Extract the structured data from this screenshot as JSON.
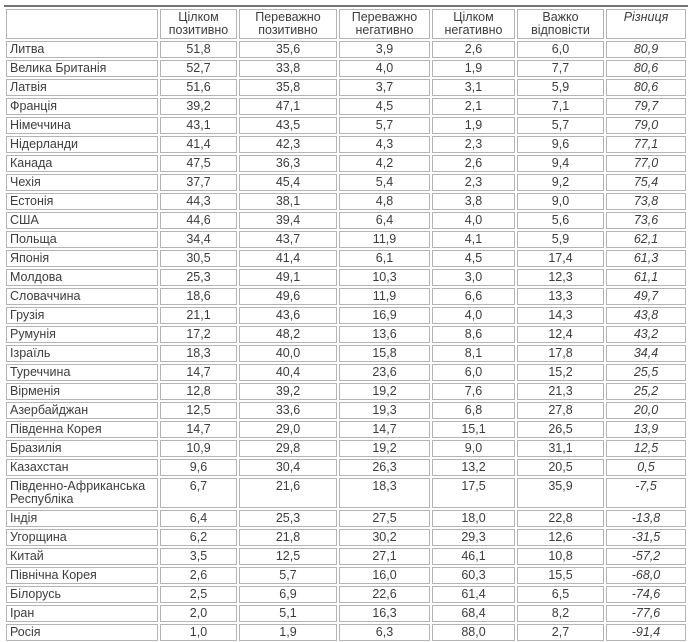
{
  "colors": {
    "background": "#ffffff",
    "text": "#3d3d3d",
    "cell_border": "#b4b4b4",
    "table_top_border": "#757575"
  },
  "chart_data": {
    "type": "table",
    "title": "",
    "columns": [
      "",
      "Цілком позитивно",
      "Переважно позитивно",
      "Переважно негативно",
      "Цілком негативно",
      "Важко відповісти",
      "Різниця"
    ],
    "rows": [
      [
        "Литва",
        "51,8",
        "35,6",
        "3,9",
        "2,6",
        "6,0",
        "80,9"
      ],
      [
        "Велика Британія",
        "52,7",
        "33,8",
        "4,0",
        "1,9",
        "7,7",
        "80,6"
      ],
      [
        "Латвія",
        "51,6",
        "35,8",
        "3,7",
        "3,1",
        "5,9",
        "80,6"
      ],
      [
        "Франція",
        "39,2",
        "47,1",
        "4,5",
        "2,1",
        "7,1",
        "79,7"
      ],
      [
        "Німеччина",
        "43,1",
        "43,5",
        "5,7",
        "1,9",
        "5,7",
        "79,0"
      ],
      [
        "Нідерланди",
        "41,4",
        "42,3",
        "4,3",
        "2,3",
        "9,6",
        "77,1"
      ],
      [
        "Канада",
        "47,5",
        "36,3",
        "4,2",
        "2,6",
        "9,4",
        "77,0"
      ],
      [
        "Чехія",
        "37,7",
        "45,4",
        "5,4",
        "2,3",
        "9,2",
        "75,4"
      ],
      [
        "Естонія",
        "44,3",
        "38,1",
        "4,8",
        "3,8",
        "9,0",
        "73,8"
      ],
      [
        "США",
        "44,6",
        "39,4",
        "6,4",
        "4,0",
        "5,6",
        "73,6"
      ],
      [
        "Польща",
        "34,4",
        "43,7",
        "11,9",
        "4,1",
        "5,9",
        "62,1"
      ],
      [
        "Японія",
        "30,5",
        "41,4",
        "6,1",
        "4,5",
        "17,4",
        "61,3"
      ],
      [
        "Молдова",
        "25,3",
        "49,1",
        "10,3",
        "3,0",
        "12,3",
        "61,1"
      ],
      [
        "Словаччина",
        "18,6",
        "49,6",
        "11,9",
        "6,6",
        "13,3",
        "49,7"
      ],
      [
        "Грузія",
        "21,1",
        "43,6",
        "16,9",
        "4,0",
        "14,3",
        "43,8"
      ],
      [
        "Румунія",
        "17,2",
        "48,2",
        "13,6",
        "8,6",
        "12,4",
        "43,2"
      ],
      [
        "Ізраїль",
        "18,3",
        "40,0",
        "15,8",
        "8,1",
        "17,8",
        "34,4"
      ],
      [
        "Туреччина",
        "14,7",
        "40,4",
        "23,6",
        "6,0",
        "15,2",
        "25,5"
      ],
      [
        "Вірменія",
        "12,8",
        "39,2",
        "19,2",
        "7,6",
        "21,3",
        "25,2"
      ],
      [
        "Азербайджан",
        "12,5",
        "33,6",
        "19,3",
        "6,8",
        "27,8",
        "20,0"
      ],
      [
        "Південна Корея",
        "14,7",
        "29,0",
        "14,7",
        "15,1",
        "26,5",
        "13,9"
      ],
      [
        "Бразилія",
        "10,9",
        "29,8",
        "19,2",
        "9,0",
        "31,1",
        "12,5"
      ],
      [
        "Казахстан",
        "9,6",
        "30,4",
        "26,3",
        "13,2",
        "20,5",
        "0,5"
      ],
      [
        "Південно-Африканська Республіка",
        "6,7",
        "21,6",
        "18,3",
        "17,5",
        "35,9",
        "-7,5"
      ],
      [
        "Індія",
        "6,4",
        "25,3",
        "27,5",
        "18,0",
        "22,8",
        "-13,8"
      ],
      [
        "Угорщина",
        "6,2",
        "21,8",
        "30,2",
        "29,3",
        "12,6",
        "-31,5"
      ],
      [
        "Китай",
        "3,5",
        "12,5",
        "27,1",
        "46,1",
        "10,8",
        "-57,2"
      ],
      [
        "Північна Корея",
        "2,6",
        "5,7",
        "16,0",
        "60,3",
        "15,5",
        "-68,0"
      ],
      [
        "Білорусь",
        "2,5",
        "6,9",
        "22,6",
        "61,4",
        "6,5",
        "-74,6"
      ],
      [
        "Іран",
        "2,0",
        "5,1",
        "16,3",
        "68,4",
        "8,2",
        "-77,6"
      ],
      [
        "Росія",
        "1,0",
        "1,9",
        "6,3",
        "88,0",
        "2,7",
        "-91,4"
      ]
    ],
    "layout": {
      "header_lines": 2,
      "diff_column_italic": true,
      "grid": "separated-light-gray-borders",
      "top_border": "dark"
    }
  }
}
